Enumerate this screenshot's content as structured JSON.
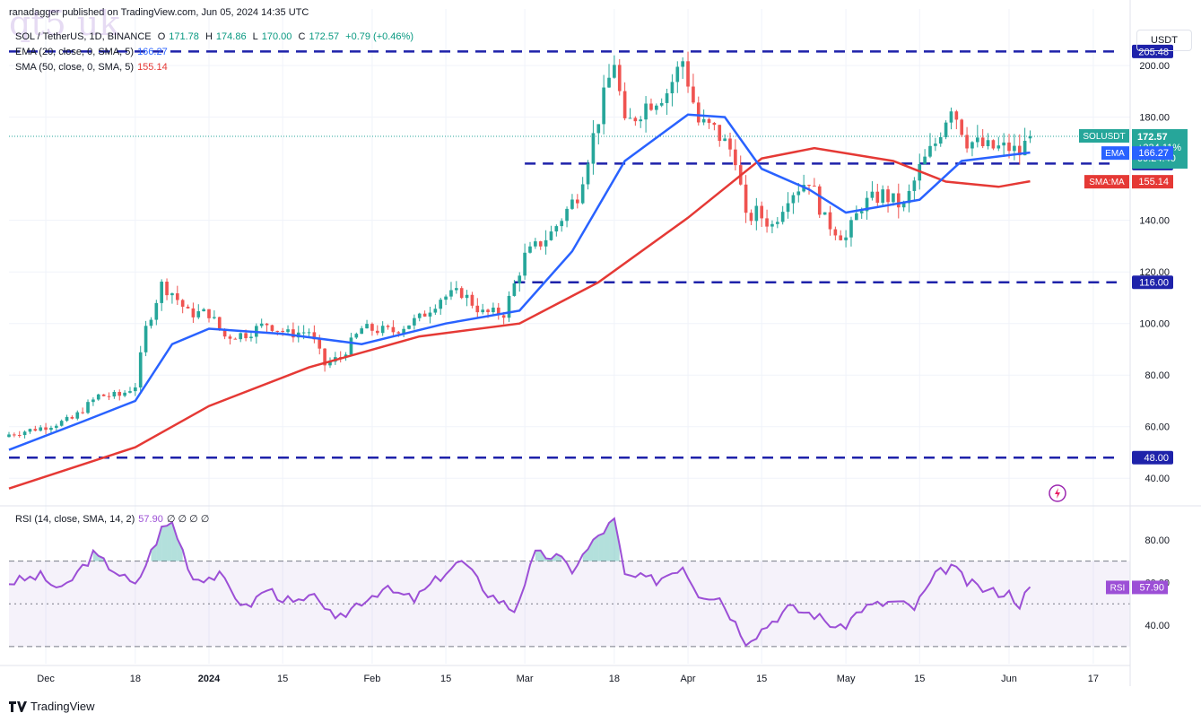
{
  "header": {
    "attribution": "ranadagger published on TradingView.com, Jun 05, 2024 14:35 UTC",
    "symbol": "SOL / TetherUS, 1D, BINANCE",
    "o_label": "O",
    "o_value": "171.78",
    "h_label": "H",
    "h_value": "174.86",
    "l_label": "L",
    "l_value": "170.00",
    "c_label": "C",
    "c_value": "172.57",
    "change": "+0.79 (+0.46%)",
    "ema_label": "EMA (20, close, 0, SMA, 5)",
    "ema_value": "166.27",
    "sma_label": "SMA (50, close, 0, SMA, 5)",
    "sma_value": "155.14",
    "watermark": "qt5 uk"
  },
  "rsi_header": {
    "label": "RSI (14, close, SMA, 14, 2)",
    "value": "57.90",
    "extras": "∅ ∅ ∅ ∅"
  },
  "currency_button": "USDT",
  "footer_brand": "TradingView",
  "colors": {
    "up": "#26a69a",
    "down": "#ef5350",
    "ema": "#2962ff",
    "sma": "#e53935",
    "level": "#1e22aa",
    "rsi": "#9c4fd6",
    "grid": "#f0f3fa"
  },
  "icons": [
    "tradingview-logo-icon",
    "lightning-icon"
  ],
  "chart_data": [
    {
      "type": "candlestick",
      "title": "SOL / TetherUS, 1D, BINANCE",
      "ylim": [
        30,
        215
      ],
      "ylabel_ticks": [
        40,
        60,
        80,
        100,
        120,
        140,
        180,
        200
      ],
      "ytick_labels": [
        "40.00",
        "60.00",
        "80.00",
        "100.00",
        "120.00",
        "140.00",
        "180.00",
        "200.00"
      ],
      "x_tick_labels": [
        "Dec",
        "18",
        "2024",
        "15",
        "Feb",
        "15",
        "Mar",
        "18",
        "Apr",
        "15",
        "May",
        "15",
        "Jun",
        "17"
      ],
      "x_ticks": [
        "2023-12-01",
        "2023-12-18",
        "2024-01-01",
        "2024-01-15",
        "2024-02-01",
        "2024-02-15",
        "2024-03-01",
        "2024-03-18",
        "2024-04-01",
        "2024-04-15",
        "2024-05-01",
        "2024-05-15",
        "2024-06-01",
        "2024-06-17"
      ],
      "xlim": [
        "2023-11-24",
        "2024-06-24"
      ],
      "horizontal_levels": [
        {
          "value": 205.48,
          "label": "205.48"
        },
        {
          "value": 162.0,
          "label": "162.00"
        },
        {
          "value": 116.0,
          "label": "116.00"
        },
        {
          "value": 48.0,
          "label": "48.00"
        }
      ],
      "price_tags": [
        {
          "name": "SOLUSDT",
          "value": 172.57,
          "lines": [
            "172.57",
            "+234.11%",
            "09:24:40"
          ]
        },
        {
          "name": "EMA",
          "value": 166.27,
          "lines": [
            "166.27"
          ]
        },
        {
          "name": "SMA:MA",
          "value": 155.14,
          "lines": [
            "155.14"
          ]
        }
      ],
      "keypoints_close": [
        [
          "2023-11-24",
          57
        ],
        [
          "2023-12-01",
          60
        ],
        [
          "2023-12-06",
          63
        ],
        [
          "2023-12-11",
          72
        ],
        [
          "2023-12-15",
          72
        ],
        [
          "2023-12-18",
          76
        ],
        [
          "2023-12-20",
          98
        ],
        [
          "2023-12-23",
          115
        ],
        [
          "2023-12-25",
          112
        ],
        [
          "2023-12-28",
          104
        ],
        [
          "2024-01-01",
          104
        ],
        [
          "2024-01-04",
          95
        ],
        [
          "2024-01-08",
          96
        ],
        [
          "2024-01-12",
          100
        ],
        [
          "2024-01-16",
          96
        ],
        [
          "2024-01-20",
          97
        ],
        [
          "2024-01-23",
          84
        ],
        [
          "2024-01-26",
          87
        ],
        [
          "2024-01-30",
          98
        ],
        [
          "2024-02-05",
          97
        ],
        [
          "2024-02-10",
          102
        ],
        [
          "2024-02-14",
          110
        ],
        [
          "2024-02-18",
          112
        ],
        [
          "2024-02-22",
          104
        ],
        [
          "2024-02-26",
          104
        ],
        [
          "2024-03-01",
          126
        ],
        [
          "2024-03-06",
          135
        ],
        [
          "2024-03-11",
          150
        ],
        [
          "2024-03-15",
          180
        ],
        [
          "2024-03-18",
          202
        ],
        [
          "2024-03-20",
          176
        ],
        [
          "2024-03-24",
          185
        ],
        [
          "2024-03-28",
          190
        ],
        [
          "2024-03-31",
          202
        ],
        [
          "2024-04-03",
          178
        ],
        [
          "2024-04-06",
          175
        ],
        [
          "2024-04-10",
          165
        ],
        [
          "2024-04-12",
          140
        ],
        [
          "2024-04-14",
          143
        ],
        [
          "2024-04-17",
          138
        ],
        [
          "2024-04-20",
          150
        ],
        [
          "2024-04-24",
          156
        ],
        [
          "2024-04-27",
          140
        ],
        [
          "2024-05-01",
          133
        ],
        [
          "2024-05-04",
          146
        ],
        [
          "2024-05-08",
          150
        ],
        [
          "2024-05-12",
          145
        ],
        [
          "2024-05-15",
          160
        ],
        [
          "2024-05-18",
          170
        ],
        [
          "2024-05-21",
          185
        ],
        [
          "2024-05-24",
          171
        ],
        [
          "2024-05-28",
          168
        ],
        [
          "2024-06-01",
          168
        ],
        [
          "2024-06-03",
          166
        ],
        [
          "2024-06-05",
          172.57
        ]
      ],
      "ema_20": [
        [
          "2023-11-24",
          51
        ],
        [
          "2023-12-08",
          62
        ],
        [
          "2023-12-18",
          70
        ],
        [
          "2023-12-25",
          92
        ],
        [
          "2024-01-01",
          98
        ],
        [
          "2024-01-15",
          96
        ],
        [
          "2024-01-30",
          92
        ],
        [
          "2024-02-15",
          100
        ],
        [
          "2024-02-29",
          105
        ],
        [
          "2024-03-10",
          128
        ],
        [
          "2024-03-20",
          163
        ],
        [
          "2024-04-01",
          181
        ],
        [
          "2024-04-08",
          180
        ],
        [
          "2024-04-15",
          160
        ],
        [
          "2024-04-24",
          152
        ],
        [
          "2024-05-01",
          143
        ],
        [
          "2024-05-15",
          148
        ],
        [
          "2024-05-23",
          163
        ],
        [
          "2024-06-05",
          166.27
        ]
      ],
      "sma_50": [
        [
          "2023-11-24",
          36
        ],
        [
          "2023-12-18",
          52
        ],
        [
          "2024-01-01",
          68
        ],
        [
          "2024-01-20",
          83
        ],
        [
          "2024-02-10",
          95
        ],
        [
          "2024-02-29",
          100
        ],
        [
          "2024-03-15",
          116
        ],
        [
          "2024-04-01",
          141
        ],
        [
          "2024-04-15",
          164
        ],
        [
          "2024-04-25",
          168
        ],
        [
          "2024-05-10",
          163
        ],
        [
          "2024-05-20",
          155
        ],
        [
          "2024-05-30",
          153
        ],
        [
          "2024-06-05",
          155.14
        ]
      ]
    },
    {
      "type": "line",
      "title": "RSI (14, close, SMA, 14, 2)",
      "ylim": [
        22,
        95
      ],
      "bands": [
        30,
        50,
        70
      ],
      "ytick_labels": [
        "40.00",
        "60.00",
        "80.00"
      ],
      "ytick_values": [
        40,
        60,
        80
      ],
      "last_value_label": "57.90",
      "series_name": "RSI",
      "keypoints": [
        [
          "2023-11-24",
          60
        ],
        [
          "2023-11-30",
          63
        ],
        [
          "2023-12-04",
          56
        ],
        [
          "2023-12-10",
          73
        ],
        [
          "2023-12-14",
          66
        ],
        [
          "2023-12-18",
          58
        ],
        [
          "2023-12-23",
          85
        ],
        [
          "2023-12-25",
          88
        ],
        [
          "2023-12-29",
          62
        ],
        [
          "2024-01-03",
          63
        ],
        [
          "2024-01-08",
          48
        ],
        [
          "2024-01-12",
          57
        ],
        [
          "2024-01-17",
          50
        ],
        [
          "2024-01-22",
          53
        ],
        [
          "2024-01-25",
          41
        ],
        [
          "2024-01-29",
          50
        ],
        [
          "2024-02-03",
          57
        ],
        [
          "2024-02-09",
          52
        ],
        [
          "2024-02-15",
          65
        ],
        [
          "2024-02-18",
          70
        ],
        [
          "2024-02-23",
          55
        ],
        [
          "2024-02-28",
          47
        ],
        [
          "2024-03-03",
          73
        ],
        [
          "2024-03-07",
          72
        ],
        [
          "2024-03-10",
          66
        ],
        [
          "2024-03-15",
          82
        ],
        [
          "2024-03-18",
          89
        ],
        [
          "2024-03-20",
          63
        ],
        [
          "2024-03-26",
          61
        ],
        [
          "2024-03-31",
          68
        ],
        [
          "2024-04-03",
          55
        ],
        [
          "2024-04-07",
          53
        ],
        [
          "2024-04-12",
          33
        ],
        [
          "2024-04-14",
          36
        ],
        [
          "2024-04-20",
          48
        ],
        [
          "2024-04-25",
          45
        ],
        [
          "2024-04-30",
          38
        ],
        [
          "2024-05-04",
          48
        ],
        [
          "2024-05-10",
          51
        ],
        [
          "2024-05-14",
          48
        ],
        [
          "2024-05-18",
          63
        ],
        [
          "2024-05-21",
          68
        ],
        [
          "2024-05-24",
          60
        ],
        [
          "2024-05-28",
          56
        ],
        [
          "2024-06-01",
          55
        ],
        [
          "2024-06-03",
          50
        ],
        [
          "2024-06-05",
          57.9
        ]
      ]
    }
  ]
}
